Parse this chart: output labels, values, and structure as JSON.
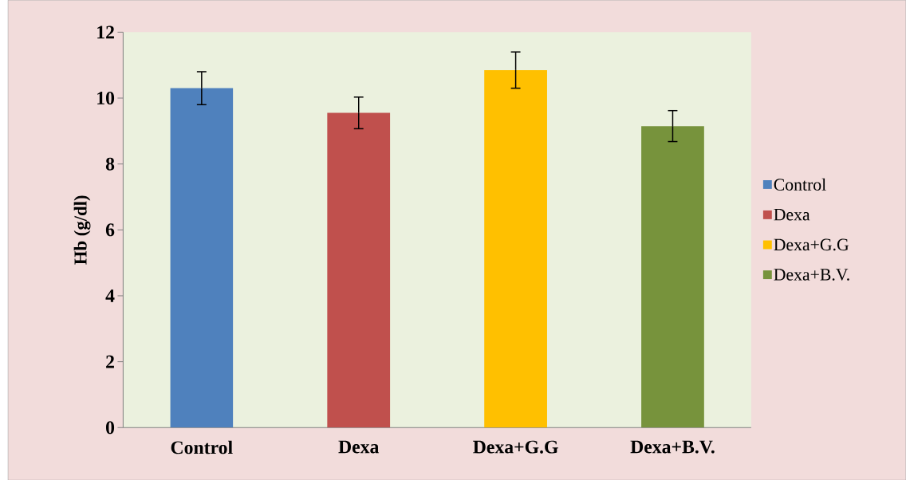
{
  "chart_data": {
    "type": "bar",
    "ylabel": "Hb (g/dl)",
    "categories": [
      "Control",
      "Dexa",
      "Dexa+G.G",
      "Dexa+B.V."
    ],
    "series": [
      {
        "name": "Control",
        "color": "#4f81bd",
        "values": [
          10.3,
          null,
          null,
          null
        ],
        "errors": [
          0.5,
          null,
          null,
          null
        ]
      },
      {
        "name": "Dexa",
        "color": "#c0504d",
        "values": [
          null,
          9.55,
          null,
          null
        ],
        "errors": [
          null,
          0.48,
          null,
          null
        ]
      },
      {
        "name": "Dexa+G.G",
        "color": "#ffc000",
        "values": [
          null,
          null,
          10.85,
          null
        ],
        "errors": [
          null,
          null,
          0.55,
          null
        ]
      },
      {
        "name": "Dexa+B.V.",
        "color": "#77933c",
        "values": [
          null,
          null,
          null,
          9.15
        ],
        "errors": [
          null,
          null,
          null,
          0.47
        ]
      }
    ],
    "ylim": [
      0,
      12
    ],
    "yticks": [
      0,
      2,
      4,
      6,
      8,
      10,
      12
    ],
    "grid": false,
    "legend": "right"
  }
}
